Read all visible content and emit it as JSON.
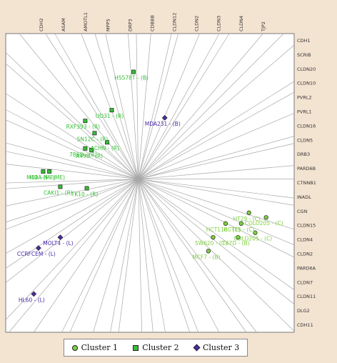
{
  "chart_data": {
    "type": "scatter",
    "title": "",
    "xlabel": "",
    "ylabel": "",
    "legend_position": "bottom",
    "grid": false,
    "colors": {
      "Cluster 1": "#7fcf3f",
      "Cluster 2": "#33bf33",
      "Cluster 3": "#4b2aa8",
      "vectors": "#a8a8a8",
      "plot_background": "#ffffff"
    },
    "legend": [
      {
        "name": "Cluster 1",
        "marker": "circle",
        "color": "#7fcf3f"
      },
      {
        "name": "Cluster 2",
        "marker": "square",
        "color": "#33bf33"
      },
      {
        "name": "Cluster 3",
        "marker": "diamond",
        "color": "#4b2aa8"
      }
    ],
    "top_labels": [
      "CDH2",
      "ASAM",
      "AMOTL1",
      "MPP5",
      "DRP3",
      "CDBBB",
      "CLDN12",
      "CLDN2",
      "CLDN3",
      "CLDN4",
      "TJP2"
    ],
    "right_labels": [
      "CDH1",
      "SCRIB",
      "CLDN20",
      "CLDN10",
      "PVRL2",
      "PVRL1",
      "CLDN16",
      "CLDN5",
      "DRB3",
      "PARD6B",
      "CTNNB1",
      "INADL",
      "CGN",
      "CLDN15",
      "CLDN4",
      "CLDN2",
      "PARD6A",
      "CLDN7",
      "CLDN11",
      "DLG2",
      "CDH11"
    ],
    "series": [
      {
        "name": "Cluster 1",
        "points": [
          {
            "label": "HT29 - (C)",
            "x": 0.71,
            "y": -0.22
          },
          {
            "label": "COLO205 - (C)",
            "x": 0.82,
            "y": -0.25
          },
          {
            "label": "HCT116 - (C)",
            "x": 0.56,
            "y": -0.29
          },
          {
            "label": "HCT15 - (C)",
            "x": 0.66,
            "y": -0.29
          },
          {
            "label": "CDLO205 - (C)",
            "x": 0.75,
            "y": -0.35
          },
          {
            "label": "T47D - (B)",
            "x": 0.64,
            "y": -0.38
          },
          {
            "label": "SW620 - (C)",
            "x": 0.48,
            "y": -0.38
          },
          {
            "label": "MCF7 - (B)",
            "x": 0.45,
            "y": -0.47
          }
        ]
      },
      {
        "name": "Cluster 2",
        "points": [
          {
            "label": "HS578T - (B)",
            "x": -0.03,
            "y": 0.7
          },
          {
            "label": "UO31 - (R)",
            "x": -0.17,
            "y": 0.45
          },
          {
            "label": "RXF393 - (R)",
            "x": -0.34,
            "y": 0.38
          },
          {
            "label": "SN12C - (R)",
            "x": -0.28,
            "y": 0.3
          },
          {
            "label": "ACHN - (R)",
            "x": -0.2,
            "y": 0.24
          },
          {
            "label": "786O - (R)",
            "x": -0.34,
            "y": 0.2
          },
          {
            "label": "A498 - (R)",
            "x": -0.3,
            "y": 0.19
          },
          {
            "label": "M14 - (ME)",
            "x": -0.61,
            "y": 0.05
          },
          {
            "label": "MDA-N - (ME)",
            "x": -0.57,
            "y": 0.05
          },
          {
            "label": "CAKI1 - (R)",
            "x": -0.5,
            "y": -0.05
          },
          {
            "label": "TK10 - (R)",
            "x": -0.33,
            "y": -0.06
          }
        ]
      },
      {
        "name": "Cluster 3",
        "points": [
          {
            "label": "MDA231 - (B)",
            "x": 0.17,
            "y": 0.4
          },
          {
            "label": "MOLT4 - (L)",
            "x": -0.5,
            "y": -0.38
          },
          {
            "label": "CCRFCEM - (L)",
            "x": -0.64,
            "y": -0.45
          },
          {
            "label": "HL60 - (L)",
            "x": -0.67,
            "y": -0.75
          }
        ]
      }
    ],
    "xlim": [
      -0.85,
      1.0
    ],
    "ylim": [
      -1.0,
      0.95
    ]
  },
  "legend_labels": {
    "cluster1": "Cluster 1",
    "cluster2": "Cluster 2",
    "cluster3": "Cluster 3"
  }
}
